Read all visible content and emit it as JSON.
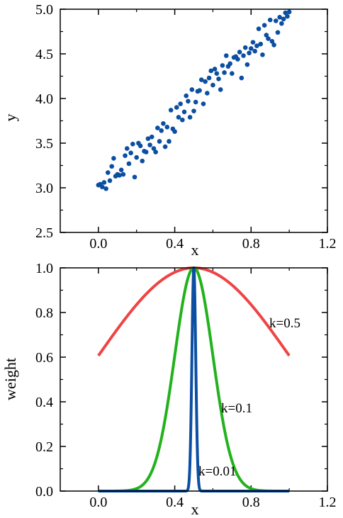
{
  "chart_data": [
    {
      "type": "scatter",
      "title": "",
      "xlabel": "x",
      "ylabel": "y",
      "xlim": [
        -0.2,
        1.2
      ],
      "ylim": [
        2.5,
        5.0
      ],
      "xticks": [
        "0.0",
        "0.4",
        "0.8",
        "1.2"
      ],
      "yticks": [
        "2.5",
        "3.0",
        "3.5",
        "4.0",
        "4.5",
        "5.0"
      ],
      "grid": false,
      "color": "#0b4ea2",
      "series": [
        {
          "x": [
            0.0,
            0.01,
            0.02,
            0.03,
            0.04,
            0.05,
            0.06,
            0.07,
            0.08,
            0.09,
            0.1,
            0.11,
            0.12,
            0.13,
            0.14,
            0.15,
            0.16,
            0.17,
            0.18,
            0.19,
            0.2,
            0.21,
            0.22,
            0.23,
            0.24,
            0.25,
            0.26,
            0.27,
            0.28,
            0.29,
            0.3,
            0.31,
            0.32,
            0.33,
            0.34,
            0.35,
            0.36,
            0.37,
            0.38,
            0.39,
            0.4,
            0.41,
            0.42,
            0.43,
            0.44,
            0.45,
            0.46,
            0.47,
            0.48,
            0.49,
            0.5,
            0.51,
            0.52,
            0.53,
            0.54,
            0.55,
            0.56,
            0.57,
            0.58,
            0.59,
            0.6,
            0.61,
            0.62,
            0.63,
            0.64,
            0.65,
            0.66,
            0.67,
            0.68,
            0.69,
            0.7,
            0.71,
            0.72,
            0.73,
            0.74,
            0.75,
            0.76,
            0.77,
            0.78,
            0.79,
            0.8,
            0.81,
            0.82,
            0.83,
            0.84,
            0.85,
            0.86,
            0.87,
            0.88,
            0.89,
            0.9,
            0.91,
            0.92,
            0.93,
            0.94,
            0.95,
            0.96,
            0.97,
            0.98,
            0.99,
            1.0
          ],
          "y": [
            3.03,
            3.04,
            3.01,
            3.06,
            2.99,
            3.17,
            3.08,
            3.24,
            3.33,
            3.13,
            3.15,
            3.14,
            3.2,
            3.15,
            3.36,
            3.44,
            3.27,
            3.39,
            3.49,
            3.12,
            3.34,
            3.5,
            3.47,
            3.3,
            3.41,
            3.4,
            3.55,
            3.48,
            3.57,
            3.44,
            3.4,
            3.67,
            3.52,
            3.64,
            3.72,
            3.46,
            3.68,
            3.52,
            3.87,
            3.66,
            3.63,
            3.9,
            3.79,
            3.94,
            3.76,
            3.85,
            4.03,
            3.97,
            3.79,
            4.1,
            3.86,
            3.96,
            4.08,
            4.09,
            4.21,
            3.94,
            4.19,
            4.06,
            4.23,
            4.31,
            4.15,
            4.33,
            4.28,
            4.22,
            4.1,
            4.37,
            4.29,
            4.48,
            4.36,
            4.39,
            4.28,
            4.46,
            4.47,
            4.44,
            4.52,
            4.23,
            4.48,
            4.57,
            4.38,
            4.51,
            4.56,
            4.63,
            4.53,
            4.59,
            4.78,
            4.61,
            4.49,
            4.82,
            4.71,
            4.67,
            4.88,
            4.64,
            4.6,
            4.87,
            4.74,
            4.91,
            4.84,
            4.89,
            4.96,
            4.92,
            4.97
          ]
        }
      ]
    },
    {
      "type": "line",
      "title": "",
      "xlabel": "x",
      "ylabel": "weight",
      "xlim": [
        -0.2,
        1.2
      ],
      "ylim": [
        0.0,
        1.0
      ],
      "xticks": [
        "0.0",
        "0.4",
        "0.8",
        "1.2"
      ],
      "yticks": [
        "0.0",
        "0.2",
        "0.4",
        "0.6",
        "0.8",
        "1.0"
      ],
      "grid": false,
      "series": [
        {
          "name": "k=0.5",
          "center": 0.5,
          "k": 0.5,
          "x_range": [
            0.0,
            1.0
          ],
          "color": "#ef4444"
        },
        {
          "name": "k=0.1",
          "center": 0.5,
          "k": 0.1,
          "x_range": [
            0.0,
            1.0
          ],
          "color": "#22b21d"
        },
        {
          "name": "k=0.01",
          "center": 0.5,
          "k": 0.01,
          "x_range": [
            0.0,
            1.0
          ],
          "color": "#0b4ea2"
        }
      ]
    }
  ]
}
